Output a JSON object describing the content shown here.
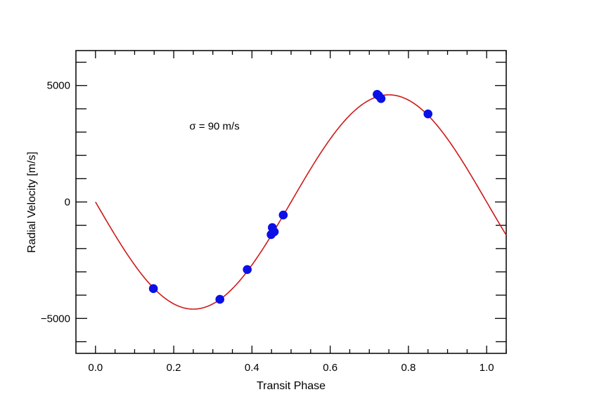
{
  "chart_data": {
    "type": "scatter",
    "title": "",
    "xlabel": "Transit Phase",
    "ylabel": "Radial Velocity [m/s]",
    "xlim": [
      -0.05,
      1.05
    ],
    "ylim": [
      -6500,
      6500
    ],
    "x_ticks": [
      0.0,
      0.2,
      0.4,
      0.6,
      0.8,
      1.0
    ],
    "x_tick_labels": [
      "0.0",
      "0.2",
      "0.4",
      "0.6",
      "0.8",
      "1.0"
    ],
    "y_ticks": [
      -5000,
      0,
      5000
    ],
    "y_tick_labels": [
      "−5000",
      "0",
      "5000"
    ],
    "grid": false,
    "annotation": {
      "text": "σ = 90 m/s",
      "x": 0.24,
      "y": 3100
    },
    "colors": {
      "model": "#cc1a1a",
      "points": "#0a10e6"
    },
    "model_curve": {
      "form": "sine",
      "amplitude": 4600,
      "period": 1.0,
      "phase_zero": 0.0,
      "sign": -1
    },
    "series": [
      {
        "x": [
          0.148,
          0.318,
          0.388,
          0.449,
          0.452,
          0.457,
          0.48,
          0.72,
          0.724,
          0.73,
          0.85
        ],
        "y": [
          -3720,
          -4180,
          -2900,
          -1400,
          -1100,
          -1280,
          -560,
          4620,
          4560,
          4440,
          3780
        ],
        "yerr": [
          150,
          150,
          120,
          120,
          120,
          120,
          120,
          130,
          130,
          140,
          120
        ]
      }
    ]
  }
}
